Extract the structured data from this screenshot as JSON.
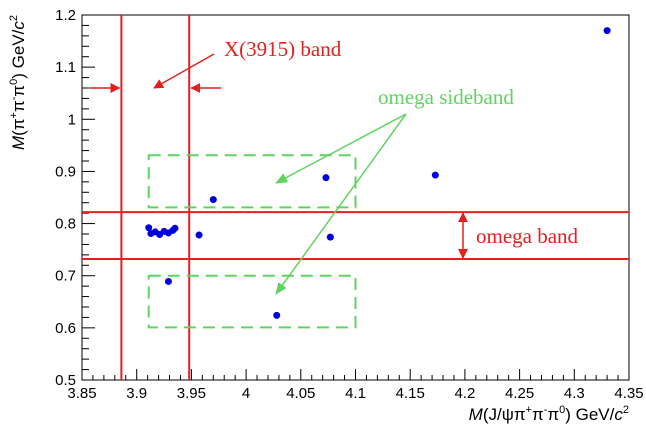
{
  "chart_data": {
    "type": "scatter",
    "xlim": [
      3.85,
      4.35
    ],
    "ylim": [
      0.5,
      1.2
    ],
    "x_ticks": [
      "3.85",
      "3.9",
      "3.95",
      "4",
      "4.05",
      "4.1",
      "4.15",
      "4.2",
      "4.25",
      "4.3",
      "4.35"
    ],
    "y_ticks": [
      "0.5",
      "0.6",
      "0.7",
      "0.8",
      "0.9",
      "1",
      "1.1",
      "1.2"
    ],
    "xlabel": {
      "italic": "M",
      "rest": "(J/ψπ",
      "sup1": "+",
      "mid1": "π",
      "sup2": "-",
      "mid2": "π",
      "sup3": "0",
      "end": ") GeV/",
      "italic2": "c",
      "sup4": "2"
    },
    "ylabel": {
      "italic": "M",
      "rest": "(π",
      "sup1": "+",
      "mid1": "π",
      "sup2": "-",
      "mid2": "π",
      "sup3": "0",
      "end": ") GeV/",
      "italic2": "c",
      "sup4": "2"
    },
    "points": [
      {
        "x": 3.911,
        "y": 0.792
      },
      {
        "x": 3.913,
        "y": 0.781
      },
      {
        "x": 3.917,
        "y": 0.784
      },
      {
        "x": 3.921,
        "y": 0.779
      },
      {
        "x": 3.925,
        "y": 0.785
      },
      {
        "x": 3.929,
        "y": 0.782
      },
      {
        "x": 3.933,
        "y": 0.787
      },
      {
        "x": 3.935,
        "y": 0.791
      },
      {
        "x": 3.929,
        "y": 0.689
      },
      {
        "x": 3.957,
        "y": 0.778
      },
      {
        "x": 3.97,
        "y": 0.846
      },
      {
        "x": 4.028,
        "y": 0.624
      },
      {
        "x": 4.073,
        "y": 0.888
      },
      {
        "x": 4.077,
        "y": 0.774
      },
      {
        "x": 4.173,
        "y": 0.893
      },
      {
        "x": 4.33,
        "y": 1.17
      }
    ],
    "x3915_band": {
      "lo": 3.886,
      "hi": 3.948
    },
    "omega_band": {
      "lo": 0.732,
      "hi": 0.822
    },
    "sidebands": [
      {
        "x0": 3.911,
        "x1": 4.1,
        "y0": 0.831,
        "y1": 0.931
      },
      {
        "x0": 3.911,
        "x1": 4.1,
        "y0": 0.601,
        "y1": 0.7
      }
    ],
    "annotations": {
      "x3915": "X(3915) band",
      "sideband": "omega sideband",
      "omega": "omega band"
    },
    "colors": {
      "points": "#0000dd",
      "band": "#e32020",
      "sideband": "#5fd35f"
    }
  }
}
